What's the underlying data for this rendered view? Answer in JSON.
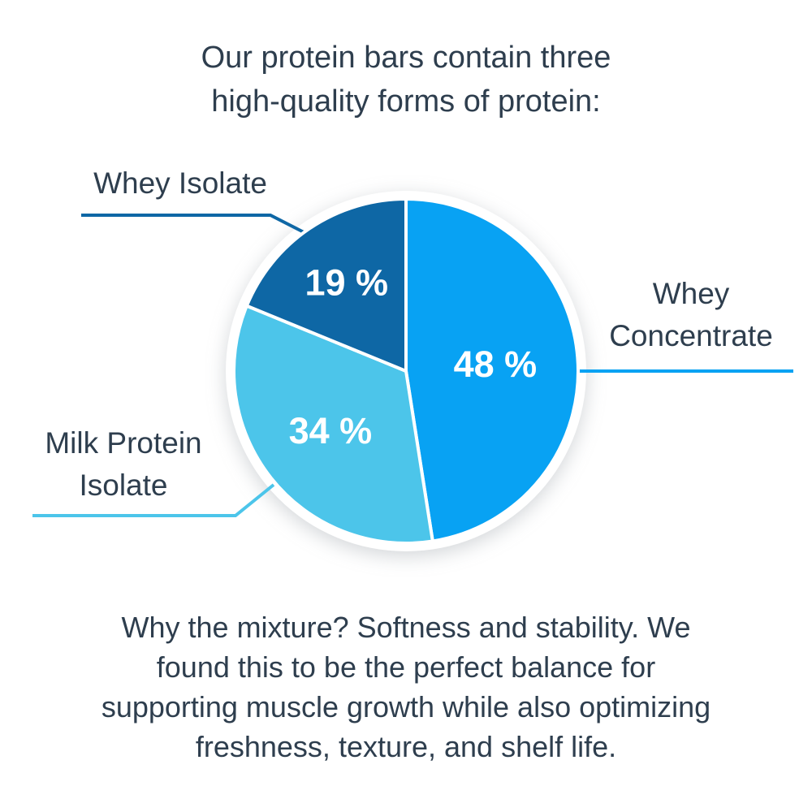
{
  "title": "Our protein bars contain three\nhigh-quality forms of protein:",
  "footer": "Why the mixture? Softness and stability. We\nfound this to be the perfect balance for\nsupporting muscle growth while also optimizing\nfreshness, texture, and shelf life.",
  "colors": {
    "background": "#ffffff",
    "text": "#2e3e4e",
    "value_label_text": "#ffffff",
    "slice_separator": "#ffffff"
  },
  "chart_data": {
    "type": "pie",
    "title": "Our protein bars contain three high-quality forms of protein:",
    "start_angle_deg": 0,
    "direction": "clockwise",
    "legend_position": "callouts-outside",
    "slices": [
      {
        "label": "Whey Concentrate",
        "callout_text": "Whey\nConcentrate",
        "value": 48,
        "value_label": "48 %",
        "color": "#08a2f3"
      },
      {
        "label": "Milk Protein Isolate",
        "callout_text": "Milk Protein\nIsolate",
        "value": 34,
        "value_label": "34 %",
        "color": "#4cc5ea"
      },
      {
        "label": "Whey Isolate",
        "callout_text": "Whey Isolate",
        "value": 19,
        "value_label": "19 %",
        "color": "#0e67a5"
      }
    ]
  }
}
